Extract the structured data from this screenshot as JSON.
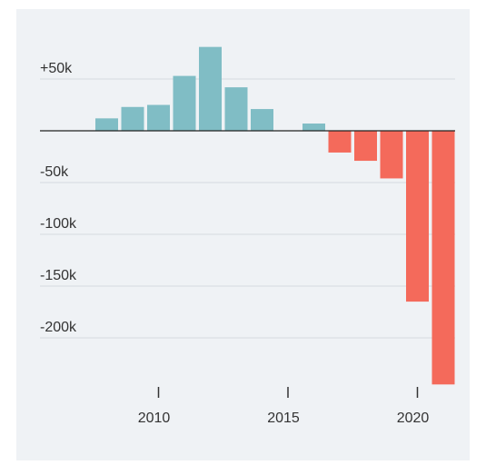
{
  "chart_data": {
    "type": "bar",
    "title": "",
    "xlabel": "",
    "ylabel": "",
    "x": [
      2008,
      2009,
      2010,
      2011,
      2012,
      2013,
      2014,
      2015,
      2016,
      2017,
      2018,
      2019,
      2020,
      2021
    ],
    "values": [
      12000,
      23000,
      25000,
      53000,
      81000,
      42000,
      21000,
      0,
      7000,
      -21000,
      -29000,
      -46000,
      -165000,
      -245000
    ],
    "ylim": [
      -250000,
      80000
    ],
    "y_ticks": [
      50000,
      0,
      -50000,
      -100000,
      -150000,
      -200000
    ],
    "y_tick_labels": [
      "+50k",
      "",
      "-50k",
      "-100k",
      "-150k",
      "-200k"
    ],
    "x_ticks": [
      2010,
      2015,
      2020
    ],
    "x_tick_labels": [
      "2010",
      "2015",
      "2020"
    ],
    "grid": true,
    "legend": "none",
    "colors": {
      "positive": "#80bdc5",
      "negative": "#f46a5b",
      "background": "#eff2f5",
      "gridline": "#d6dadf",
      "zero_line": "#222222",
      "text": "#333333"
    }
  }
}
